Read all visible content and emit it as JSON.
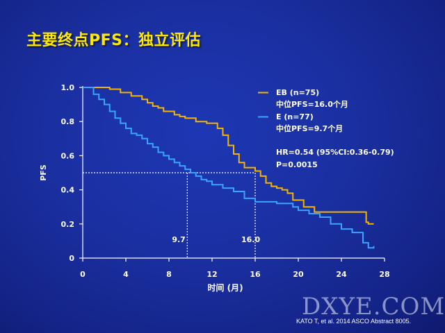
{
  "slide": {
    "title": "主要终点PFS：独立评估",
    "citation": "KATO T, et al. 2014 ASCO Abstract 8005.",
    "watermark": "DXYE.COM"
  },
  "chart_data": {
    "type": "line",
    "step": true,
    "ylabel": "PFS",
    "xlabel": "时间 (月)",
    "xlim": [
      0,
      28
    ],
    "ylim": [
      0,
      1.0
    ],
    "xticks": [
      "0",
      "4",
      "8",
      "12",
      "16",
      "20",
      "24",
      "28"
    ],
    "yticks": [
      "0",
      "0.2",
      "0.4",
      "0.6",
      "0.8",
      "1.0"
    ],
    "legend_placement": "top-right",
    "series": [
      {
        "name": "EB (n=75)",
        "color": "#f5b400",
        "x": [
          0,
          2.5,
          3.5,
          4.5,
          5.5,
          6.0,
          6.5,
          7.0,
          7.5,
          8.5,
          9.0,
          9.5,
          10.5,
          11.5,
          12.5,
          13.0,
          13.5,
          14.0,
          14.5,
          15.0,
          16.0,
          16.5,
          17.0,
          17.5,
          18.0,
          18.5,
          19.0,
          19.5,
          20.5,
          21.5,
          26.3,
          26.5,
          27.0
        ],
        "y": [
          1.0,
          0.99,
          0.97,
          0.95,
          0.93,
          0.91,
          0.89,
          0.88,
          0.86,
          0.84,
          0.83,
          0.82,
          0.8,
          0.79,
          0.76,
          0.72,
          0.66,
          0.61,
          0.56,
          0.53,
          0.51,
          0.48,
          0.44,
          0.42,
          0.41,
          0.4,
          0.38,
          0.34,
          0.3,
          0.27,
          0.21,
          0.2,
          0.2
        ]
      },
      {
        "name": "E (n=77)",
        "color": "#3aa4ff",
        "x": [
          0,
          1.0,
          1.5,
          2.0,
          2.5,
          3.0,
          3.5,
          4.0,
          4.5,
          5.0,
          5.5,
          6.0,
          6.5,
          7.0,
          7.5,
          8.0,
          8.5,
          9.0,
          9.5,
          10.0,
          10.5,
          11.0,
          11.5,
          12.0,
          13.0,
          14.0,
          15.0,
          16.0,
          18.0,
          19.5,
          20.0,
          21.0,
          22.0,
          23.0,
          24.0,
          25.0,
          26.0,
          26.5,
          27.0
        ],
        "y": [
          1.0,
          0.96,
          0.93,
          0.9,
          0.86,
          0.82,
          0.79,
          0.76,
          0.73,
          0.72,
          0.7,
          0.67,
          0.65,
          0.62,
          0.6,
          0.58,
          0.56,
          0.54,
          0.52,
          0.5,
          0.48,
          0.46,
          0.45,
          0.43,
          0.41,
          0.39,
          0.35,
          0.33,
          0.32,
          0.3,
          0.28,
          0.26,
          0.24,
          0.2,
          0.17,
          0.15,
          0.09,
          0.06,
          0.07
        ]
      }
    ],
    "median_markers": [
      {
        "x": 9.7,
        "y": 0.5,
        "label": "9.7"
      },
      {
        "x": 16.0,
        "y": 0.5,
        "label": "16.0"
      }
    ],
    "legend": [
      {
        "series": "EB (n=75)",
        "line1": "EB (n=75)",
        "line2": "中位PFS=16.0个月"
      },
      {
        "series": "E (n=77)",
        "line1": "E (n=77)",
        "line2": "中位PFS=9.7个月"
      }
    ],
    "annotations": [
      "HR=0.54 (95%CI:0.36-0.79)",
      "P=0.0015"
    ]
  }
}
